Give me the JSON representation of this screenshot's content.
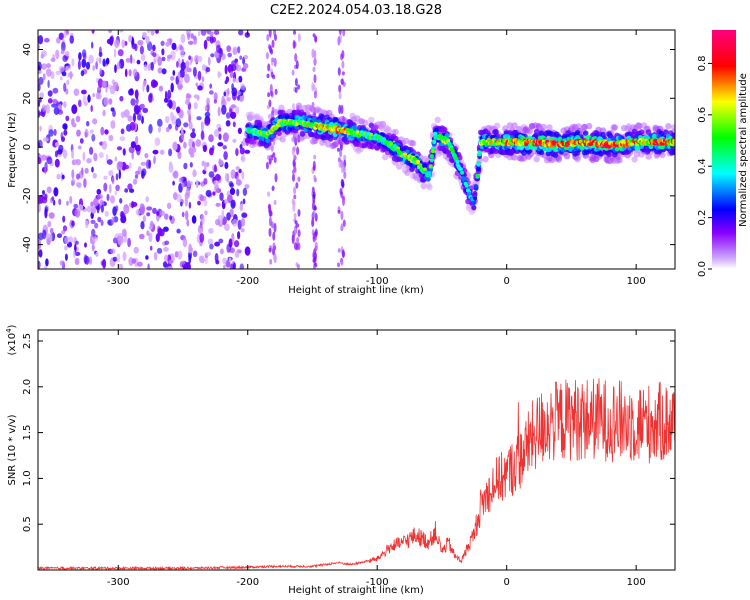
{
  "figure_title": "C2E2.2024.054.03.18.G28",
  "chart_data": [
    {
      "type": "heatmap",
      "title": "C2E2.2024.054.03.18.G28",
      "xlabel": "Height of straight line (km)",
      "ylabel": "Frequency (Hz)",
      "xlim": [
        -362,
        130
      ],
      "ylim": [
        -50,
        48
      ],
      "xticks": [
        -300,
        -200,
        -100,
        0,
        100
      ],
      "yticks": [
        -40,
        -20,
        0,
        20,
        40
      ],
      "grid": false,
      "colorbar": {
        "label": "Normalized spectral amplitude",
        "range": [
          0.0,
          0.93
        ],
        "ticks": [
          0.0,
          0.2,
          0.4,
          0.6,
          0.8
        ],
        "colormap": [
          "#ffffff",
          "#8b00ff",
          "#0000ff",
          "#00ffff",
          "#00ff00",
          "#ffff00",
          "#ff0000",
          "#ff0080"
        ]
      },
      "noise_region": {
        "x_start": -362,
        "x_end": -200,
        "amplitude": 0.1
      },
      "noise_strips": [
        [
          -185,
          -178
        ],
        [
          -165,
          -160
        ],
        [
          -150,
          -147
        ],
        [
          -130,
          -125
        ]
      ],
      "ridge": [
        {
          "x": -200,
          "y": 7,
          "amp": 0.5
        },
        {
          "x": -185,
          "y": 5,
          "amp": 0.6
        },
        {
          "x": -175,
          "y": 10,
          "amp": 0.6
        },
        {
          "x": -160,
          "y": 10,
          "amp": 0.6
        },
        {
          "x": -140,
          "y": 8,
          "amp": 0.7
        },
        {
          "x": -130,
          "y": 7,
          "amp": 0.8
        },
        {
          "x": -120,
          "y": 6,
          "amp": 0.6
        },
        {
          "x": -100,
          "y": 4,
          "amp": 0.5
        },
        {
          "x": -90,
          "y": 1,
          "amp": 0.5
        },
        {
          "x": -80,
          "y": -3,
          "amp": 0.6
        },
        {
          "x": -70,
          "y": -6,
          "amp": 0.6
        },
        {
          "x": -60,
          "y": -12,
          "amp": 0.5
        },
        {
          "x": -55,
          "y": 5,
          "amp": 0.5
        },
        {
          "x": -45,
          "y": 2,
          "amp": 0.6
        },
        {
          "x": -40,
          "y": -4,
          "amp": 0.5
        },
        {
          "x": -35,
          "y": -10,
          "amp": 0.4
        },
        {
          "x": -30,
          "y": -18,
          "amp": 0.4
        },
        {
          "x": -25,
          "y": -23,
          "amp": 0.3
        },
        {
          "x": -20,
          "y": 2,
          "amp": 0.6
        },
        {
          "x": 0,
          "y": 2,
          "amp": 0.7
        },
        {
          "x": 20,
          "y": 2,
          "amp": 0.8
        },
        {
          "x": 40,
          "y": 1,
          "amp": 0.8
        },
        {
          "x": 60,
          "y": 2,
          "amp": 0.8
        },
        {
          "x": 80,
          "y": 1,
          "amp": 0.8
        },
        {
          "x": 100,
          "y": 2,
          "amp": 0.7
        },
        {
          "x": 120,
          "y": 2,
          "amp": 0.8
        },
        {
          "x": 130,
          "y": 2,
          "amp": 0.7
        }
      ]
    },
    {
      "type": "line",
      "xlabel": "Height of straight line (km)",
      "ylabel": "SNR (10 * v/v)",
      "y_multiplier": "(x10",
      "y_multiplier_exp": "4",
      "y_multiplier_close": ")",
      "xlim": [
        -362,
        130
      ],
      "ylim": [
        0,
        2.62
      ],
      "xticks": [
        -300,
        -200,
        -100,
        0,
        100
      ],
      "yticks": [
        0.5,
        1.0,
        1.5,
        2.0,
        2.5
      ],
      "y_tick_labels": [
        "0.5",
        "1.0",
        "1.5",
        "2.0",
        "2.5"
      ],
      "grid": false,
      "color": "#ee3333",
      "series": [
        {
          "x": [
            -362,
            -300,
            -250,
            -200,
            -180,
            -150,
            -130,
            -120,
            -100,
            -90,
            -80,
            -70,
            -60,
            -55,
            -50,
            -45,
            -40,
            -35,
            -30,
            -25,
            -20,
            -10,
            0,
            10,
            20,
            30,
            50,
            70,
            90,
            110,
            130
          ],
          "values": [
            0.02,
            0.02,
            0.02,
            0.03,
            0.04,
            0.04,
            0.08,
            0.06,
            0.12,
            0.25,
            0.3,
            0.38,
            0.3,
            0.42,
            0.2,
            0.3,
            0.15,
            0.1,
            0.25,
            0.4,
            0.7,
            0.95,
            1.05,
            1.2,
            1.45,
            1.6,
            1.65,
            1.65,
            1.62,
            1.6,
            1.62
          ]
        }
      ]
    }
  ]
}
